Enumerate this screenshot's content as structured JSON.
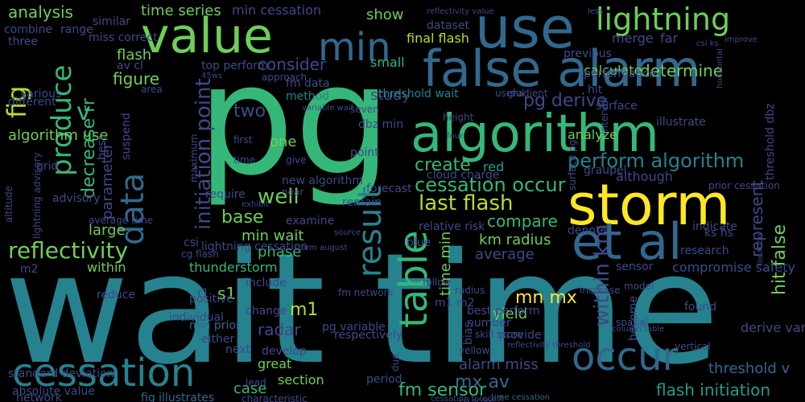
{
  "words": [
    "pg",
    "wait time",
    "algorithm",
    "storm",
    "use",
    "false alarm",
    "value",
    "min",
    "lightning",
    "produce",
    "data",
    "et al",
    "table",
    "result",
    "cessation",
    "occur",
    "reflectivity",
    "fig",
    "analysis",
    "time series",
    "min cessation",
    "show",
    "last flash",
    "initiation point",
    "consider",
    "two",
    "figure",
    "parameter",
    "algorithm use",
    "v",
    "perform algorithm",
    "cessation occur",
    "well",
    "base",
    "compare",
    "determine",
    "pg derive",
    "study",
    "small",
    "one",
    "first",
    "time",
    "give",
    "create",
    "red",
    "fm data",
    "method",
    "final flash",
    "threshold wait",
    "dataset",
    "calculate",
    "within km",
    "km radius",
    "average",
    "mn mx",
    "yield",
    "alarm miss",
    "hit false",
    "represent",
    "threshold dbz",
    "min wait",
    "phase",
    "s1",
    "m1",
    "radar",
    "great",
    "section",
    "case",
    "fm sensor",
    "mx av",
    "flash initiation",
    "threshold v",
    "time min",
    "decrease rr",
    "large",
    "within",
    "thunderstorm",
    "lightning cessation",
    "cg flash",
    "csi",
    "next",
    "reduce",
    "positive",
    "develop",
    "network",
    "standard deviation",
    "absolute value",
    "fig illustrates",
    "time cessation",
    "cessation forecast",
    "characteristic",
    "lead",
    "either",
    "include",
    "change",
    "individual",
    "min prior",
    "flash",
    "av cl",
    "miss correct",
    "similar",
    "range",
    "combine",
    "three",
    "various",
    "different",
    "best",
    "suspend",
    "advisory",
    "grid",
    "altitude",
    "lightning advisory",
    "average time",
    "maximum",
    "top perform",
    "approach",
    "45ws",
    "variable wait",
    "area",
    "previous",
    "merge",
    "far",
    "less",
    "improve",
    "csi ks",
    "horizontal",
    "reflectivity value",
    "performance",
    "hit",
    "surface",
    "illustrate",
    "analyze",
    "graupel",
    "although",
    "prior cessation",
    "surface pg",
    "interval",
    "gradient",
    "useful",
    "height",
    "four",
    "seven",
    "dbz min",
    "point",
    "cloud charge",
    "forecast",
    "remain",
    "exhibit",
    "new algorithm",
    "require",
    "near",
    "examine",
    "source",
    "storm august",
    "relative risk",
    "best perform",
    "number",
    "denote",
    "indicate",
    "ks hs",
    "increase",
    "sensor",
    "compromise safety",
    "research",
    "derive variable",
    "found",
    "location",
    "provide",
    "reflectivity threshold",
    "skill score",
    "column table",
    "spatial",
    "yellow",
    "vertical",
    "bias",
    "due",
    "pg variable",
    "respectively",
    "blue",
    "fm network",
    "follow",
    "model",
    "become",
    "period",
    "radius",
    "r1",
    "m2",
    "m1 m2",
    "csi score",
    "rr",
    "cessation forecast"
  ],
  "colors": {
    "background": "#000000",
    "palette": [
      "#35b779",
      "#31688e",
      "#3e4989",
      "#26828e",
      "#1f9e89",
      "#6ece58",
      "#b5de2b",
      "#fde725",
      "#440154",
      "#482878"
    ]
  }
}
